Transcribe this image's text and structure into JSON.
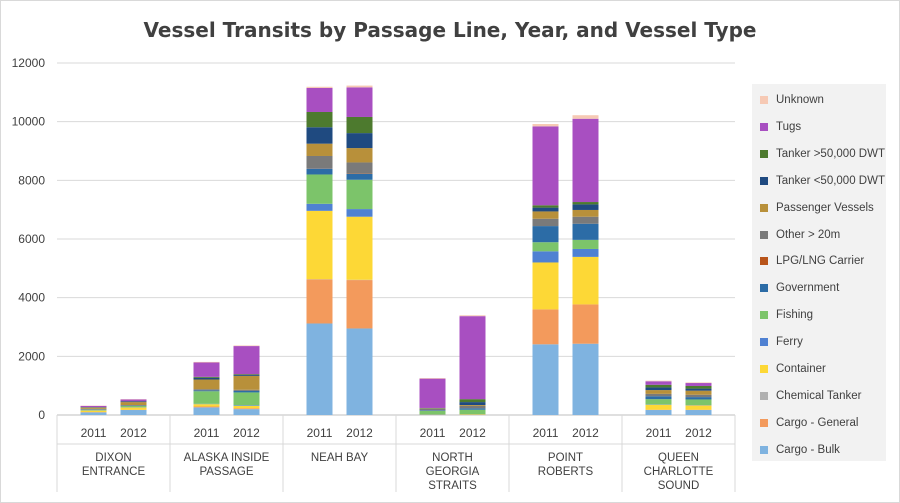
{
  "chart_data": {
    "type": "bar",
    "stacked": true,
    "title": "Vessel Transits by Passage Line, Year, and Vessel Type",
    "xlabel": "",
    "ylabel": "",
    "ylim": [
      0,
      12000
    ],
    "yticks": [
      0,
      2000,
      4000,
      6000,
      8000,
      10000,
      12000
    ],
    "grid": true,
    "legend_position": "right",
    "groups": [
      {
        "label_lines": [
          "DIXON",
          "ENTRANCE"
        ],
        "years": [
          "2011",
          "2012"
        ]
      },
      {
        "label_lines": [
          "ALASKA INSIDE",
          "PASSAGE"
        ],
        "years": [
          "2011",
          "2012"
        ]
      },
      {
        "label_lines": [
          "NEAH BAY"
        ],
        "years": [
          "2011",
          "2012"
        ]
      },
      {
        "label_lines": [
          "NORTH",
          "GEORGIA",
          "STRAITS"
        ],
        "years": [
          "2011",
          "2012"
        ]
      },
      {
        "label_lines": [
          "POINT",
          "ROBERTS"
        ],
        "years": [
          "2011",
          "2012"
        ]
      },
      {
        "label_lines": [
          "QUEEN",
          "CHARLOTTE",
          "SOUND"
        ],
        "years": [
          "2011",
          "2012"
        ]
      }
    ],
    "categories": [
      "DIXON ENTRANCE 2011",
      "DIXON ENTRANCE 2012",
      "ALASKA INSIDE PASSAGE 2011",
      "ALASKA INSIDE PASSAGE 2012",
      "NEAH BAY 2011",
      "NEAH BAY 2012",
      "NORTH GEORGIA STRAITS 2011",
      "NORTH GEORGIA STRAITS 2012",
      "POINT ROBERTS 2011",
      "POINT ROBERTS 2012",
      "QUEEN CHARLOTTE SOUND 2011",
      "QUEEN CHARLOTTE SOUND 2012"
    ],
    "series": [
      {
        "name": "Cargo - Bulk",
        "color": "#7fb3e0",
        "values": [
          90,
          170,
          260,
          200,
          3120,
          2950,
          0,
          0,
          2410,
          2430,
          170,
          170
        ]
      },
      {
        "name": "Cargo - General",
        "color": "#f39a5c",
        "values": [
          10,
          10,
          30,
          30,
          1500,
          1650,
          0,
          0,
          1190,
          1340,
          10,
          10
        ]
      },
      {
        "name": "Chemical Tanker",
        "color": "#b0b0b0",
        "values": [
          0,
          0,
          0,
          0,
          10,
          10,
          0,
          0,
          0,
          0,
          0,
          0
        ]
      },
      {
        "name": "Container",
        "color": "#fdd836",
        "values": [
          50,
          80,
          80,
          80,
          2330,
          2150,
          10,
          20,
          1600,
          1620,
          170,
          150
        ]
      },
      {
        "name": "Ferry",
        "color": "#4f81d2",
        "values": [
          10,
          10,
          10,
          20,
          240,
          260,
          10,
          10,
          380,
          270,
          10,
          10
        ]
      },
      {
        "name": "Fishing",
        "color": "#7cc46a",
        "values": [
          20,
          40,
          430,
          440,
          1000,
          1000,
          120,
          150,
          310,
          310,
          180,
          190
        ]
      },
      {
        "name": "Government",
        "color": "#2c6ca6",
        "values": [
          10,
          10,
          30,
          50,
          200,
          200,
          20,
          50,
          550,
          550,
          100,
          80
        ]
      },
      {
        "name": "LPG/LNG Carrier",
        "color": "#b8541a",
        "values": [
          0,
          0,
          0,
          0,
          10,
          10,
          0,
          0,
          0,
          0,
          0,
          0
        ]
      },
      {
        "name": "Other > 20m",
        "color": "#7a7a7a",
        "values": [
          20,
          20,
          40,
          40,
          420,
          380,
          50,
          80,
          250,
          240,
          80,
          80
        ]
      },
      {
        "name": "Passenger Vessels",
        "color": "#b8903a",
        "values": [
          40,
          100,
          330,
          470,
          420,
          490,
          10,
          30,
          250,
          230,
          130,
          140
        ]
      },
      {
        "name": "Tanker <50,000 DWT",
        "color": "#1f4a80",
        "values": [
          10,
          20,
          60,
          30,
          560,
          510,
          10,
          100,
          130,
          190,
          90,
          70
        ]
      },
      {
        "name": "Tanker >50,000 DWT",
        "color": "#4d7a2e",
        "values": [
          10,
          10,
          30,
          30,
          520,
          550,
          10,
          100,
          80,
          80,
          90,
          90
        ]
      },
      {
        "name": "Tugs",
        "color": "#a84fc1",
        "values": [
          40,
          60,
          490,
          960,
          820,
          1010,
          1000,
          2830,
          2690,
          2840,
          120,
          100
        ]
      },
      {
        "name": "Unknown",
        "color": "#f6c9b4",
        "values": [
          10,
          10,
          20,
          20,
          40,
          60,
          20,
          30,
          80,
          120,
          20,
          20
        ]
      }
    ]
  }
}
